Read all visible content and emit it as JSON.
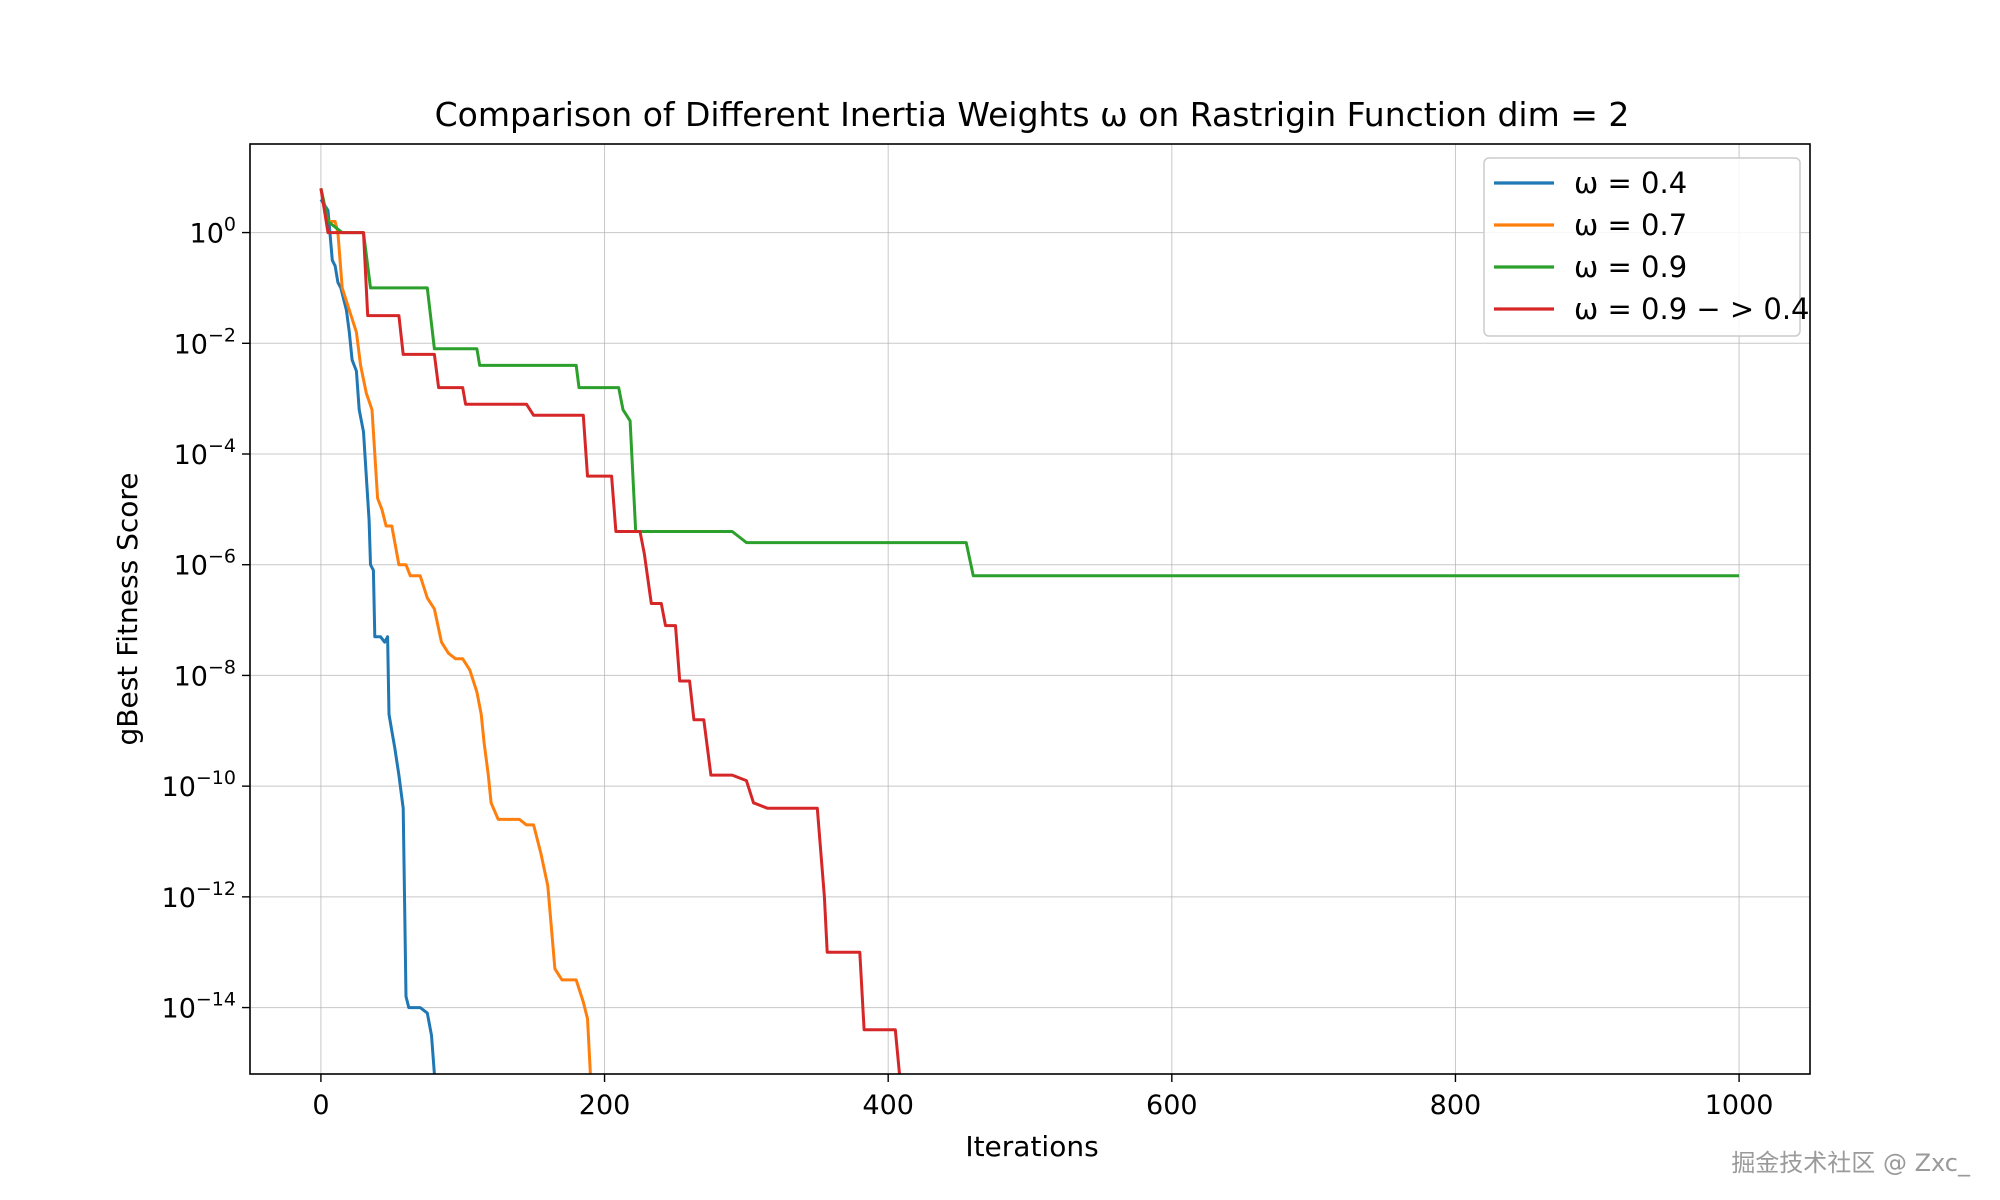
{
  "chart_data": {
    "type": "line",
    "title": "Comparison of Different Inertia Weights ω on Rastrigin Function dim = 2",
    "xlabel": "Iterations",
    "ylabel": "gBest Fitness Score",
    "xlim": [
      -50,
      1050
    ],
    "ylim_log10": [
      -15.2,
      1.6
    ],
    "y_scale": "log",
    "grid": true,
    "legend_position": "top-right",
    "x_ticks": [
      0,
      200,
      400,
      600,
      800,
      1000
    ],
    "y_ticks": [
      {
        "exp": 0,
        "base": "10",
        "sup": "0"
      },
      {
        "exp": -2,
        "base": "10",
        "sup": "−2"
      },
      {
        "exp": -4,
        "base": "10",
        "sup": "−4"
      },
      {
        "exp": -6,
        "base": "10",
        "sup": "−6"
      },
      {
        "exp": -8,
        "base": "10",
        "sup": "−8"
      },
      {
        "exp": -10,
        "base": "10",
        "sup": "−10"
      },
      {
        "exp": -12,
        "base": "10",
        "sup": "−12"
      },
      {
        "exp": -14,
        "base": "10",
        "sup": "−14"
      }
    ],
    "series": [
      {
        "name": "ω = 0.4",
        "color": "#1f77b4",
        "points": [
          [
            0,
            0.6
          ],
          [
            5,
            0.4
          ],
          [
            8,
            -0.5
          ],
          [
            10,
            -0.6
          ],
          [
            12,
            -0.9
          ],
          [
            14,
            -1
          ],
          [
            16,
            -1.2
          ],
          [
            18,
            -1.4
          ],
          [
            20,
            -1.8
          ],
          [
            22,
            -2.3
          ],
          [
            25,
            -2.5
          ],
          [
            27,
            -3.2
          ],
          [
            30,
            -3.6
          ],
          [
            33,
            -4.8
          ],
          [
            34,
            -5.2
          ],
          [
            35,
            -6.0
          ],
          [
            37,
            -6.1
          ],
          [
            38,
            -7.3
          ],
          [
            42,
            -7.3
          ],
          [
            45,
            -7.4
          ],
          [
            47,
            -7.3
          ],
          [
            48,
            -8.7
          ],
          [
            50,
            -9.0
          ],
          [
            52,
            -9.3
          ],
          [
            55,
            -9.8
          ],
          [
            58,
            -10.4
          ],
          [
            60,
            -13.8
          ],
          [
            62,
            -14.0
          ],
          [
            70,
            -14.0
          ],
          [
            75,
            -14.1
          ],
          [
            78,
            -14.5
          ],
          [
            80,
            -15.2
          ]
        ]
      },
      {
        "name": "ω = 0.7",
        "color": "#ff7f0e",
        "points": [
          [
            0,
            0.8
          ],
          [
            5,
            0.2
          ],
          [
            10,
            0.2
          ],
          [
            12,
            0.0
          ],
          [
            15,
            -1.0
          ],
          [
            20,
            -1.4
          ],
          [
            25,
            -1.8
          ],
          [
            28,
            -2.4
          ],
          [
            32,
            -2.9
          ],
          [
            36,
            -3.2
          ],
          [
            40,
            -4.8
          ],
          [
            43,
            -5.0
          ],
          [
            46,
            -5.3
          ],
          [
            50,
            -5.3
          ],
          [
            55,
            -6.0
          ],
          [
            60,
            -6.0
          ],
          [
            63,
            -6.2
          ],
          [
            70,
            -6.2
          ],
          [
            75,
            -6.6
          ],
          [
            80,
            -6.8
          ],
          [
            85,
            -7.4
          ],
          [
            90,
            -7.6
          ],
          [
            95,
            -7.7
          ],
          [
            100,
            -7.7
          ],
          [
            105,
            -7.9
          ],
          [
            110,
            -8.3
          ],
          [
            113,
            -8.7
          ],
          [
            115,
            -9.2
          ],
          [
            118,
            -9.8
          ],
          [
            120,
            -10.3
          ],
          [
            125,
            -10.6
          ],
          [
            140,
            -10.6
          ],
          [
            145,
            -10.7
          ],
          [
            150,
            -10.7
          ],
          [
            155,
            -11.2
          ],
          [
            160,
            -11.8
          ],
          [
            165,
            -13.3
          ],
          [
            170,
            -13.5
          ],
          [
            180,
            -13.5
          ],
          [
            185,
            -13.9
          ],
          [
            188,
            -14.2
          ],
          [
            190,
            -15.2
          ]
        ]
      },
      {
        "name": "ω = 0.9",
        "color": "#2ca02c",
        "points": [
          [
            0,
            0.8
          ],
          [
            5,
            0.2
          ],
          [
            15,
            0.0
          ],
          [
            30,
            0.0
          ],
          [
            35,
            -1.0
          ],
          [
            75,
            -1.0
          ],
          [
            80,
            -2.1
          ],
          [
            110,
            -2.1
          ],
          [
            112,
            -2.4
          ],
          [
            180,
            -2.4
          ],
          [
            182,
            -2.8
          ],
          [
            210,
            -2.8
          ],
          [
            213,
            -3.2
          ],
          [
            218,
            -3.4
          ],
          [
            222,
            -5.4
          ],
          [
            225,
            -5.4
          ],
          [
            290,
            -5.4
          ],
          [
            295,
            -5.5
          ],
          [
            300,
            -5.6
          ],
          [
            455,
            -5.6
          ],
          [
            460,
            -6.2
          ],
          [
            1000,
            -6.2
          ]
        ]
      },
      {
        "name": "ω = 0.9 − > 0.4",
        "color": "#d62728",
        "points": [
          [
            0,
            0.8
          ],
          [
            5,
            0.0
          ],
          [
            30,
            0.0
          ],
          [
            33,
            -1.5
          ],
          [
            55,
            -1.5
          ],
          [
            58,
            -2.2
          ],
          [
            80,
            -2.2
          ],
          [
            83,
            -2.8
          ],
          [
            100,
            -2.8
          ],
          [
            102,
            -3.1
          ],
          [
            145,
            -3.1
          ],
          [
            150,
            -3.3
          ],
          [
            185,
            -3.3
          ],
          [
            188,
            -4.4
          ],
          [
            205,
            -4.4
          ],
          [
            208,
            -5.4
          ],
          [
            225,
            -5.4
          ],
          [
            228,
            -5.8
          ],
          [
            233,
            -6.7
          ],
          [
            240,
            -6.7
          ],
          [
            243,
            -7.1
          ],
          [
            250,
            -7.1
          ],
          [
            253,
            -8.1
          ],
          [
            260,
            -8.1
          ],
          [
            263,
            -8.8
          ],
          [
            270,
            -8.8
          ],
          [
            275,
            -9.8
          ],
          [
            290,
            -9.8
          ],
          [
            300,
            -9.9
          ],
          [
            305,
            -10.3
          ],
          [
            315,
            -10.4
          ],
          [
            350,
            -10.4
          ],
          [
            355,
            -12.0
          ],
          [
            357,
            -13.0
          ],
          [
            360,
            -13.0
          ],
          [
            380,
            -13.0
          ],
          [
            383,
            -14.4
          ],
          [
            405,
            -14.4
          ],
          [
            408,
            -15.2
          ]
        ]
      }
    ]
  },
  "watermark": "掘金技术社区 @ Zxc_"
}
